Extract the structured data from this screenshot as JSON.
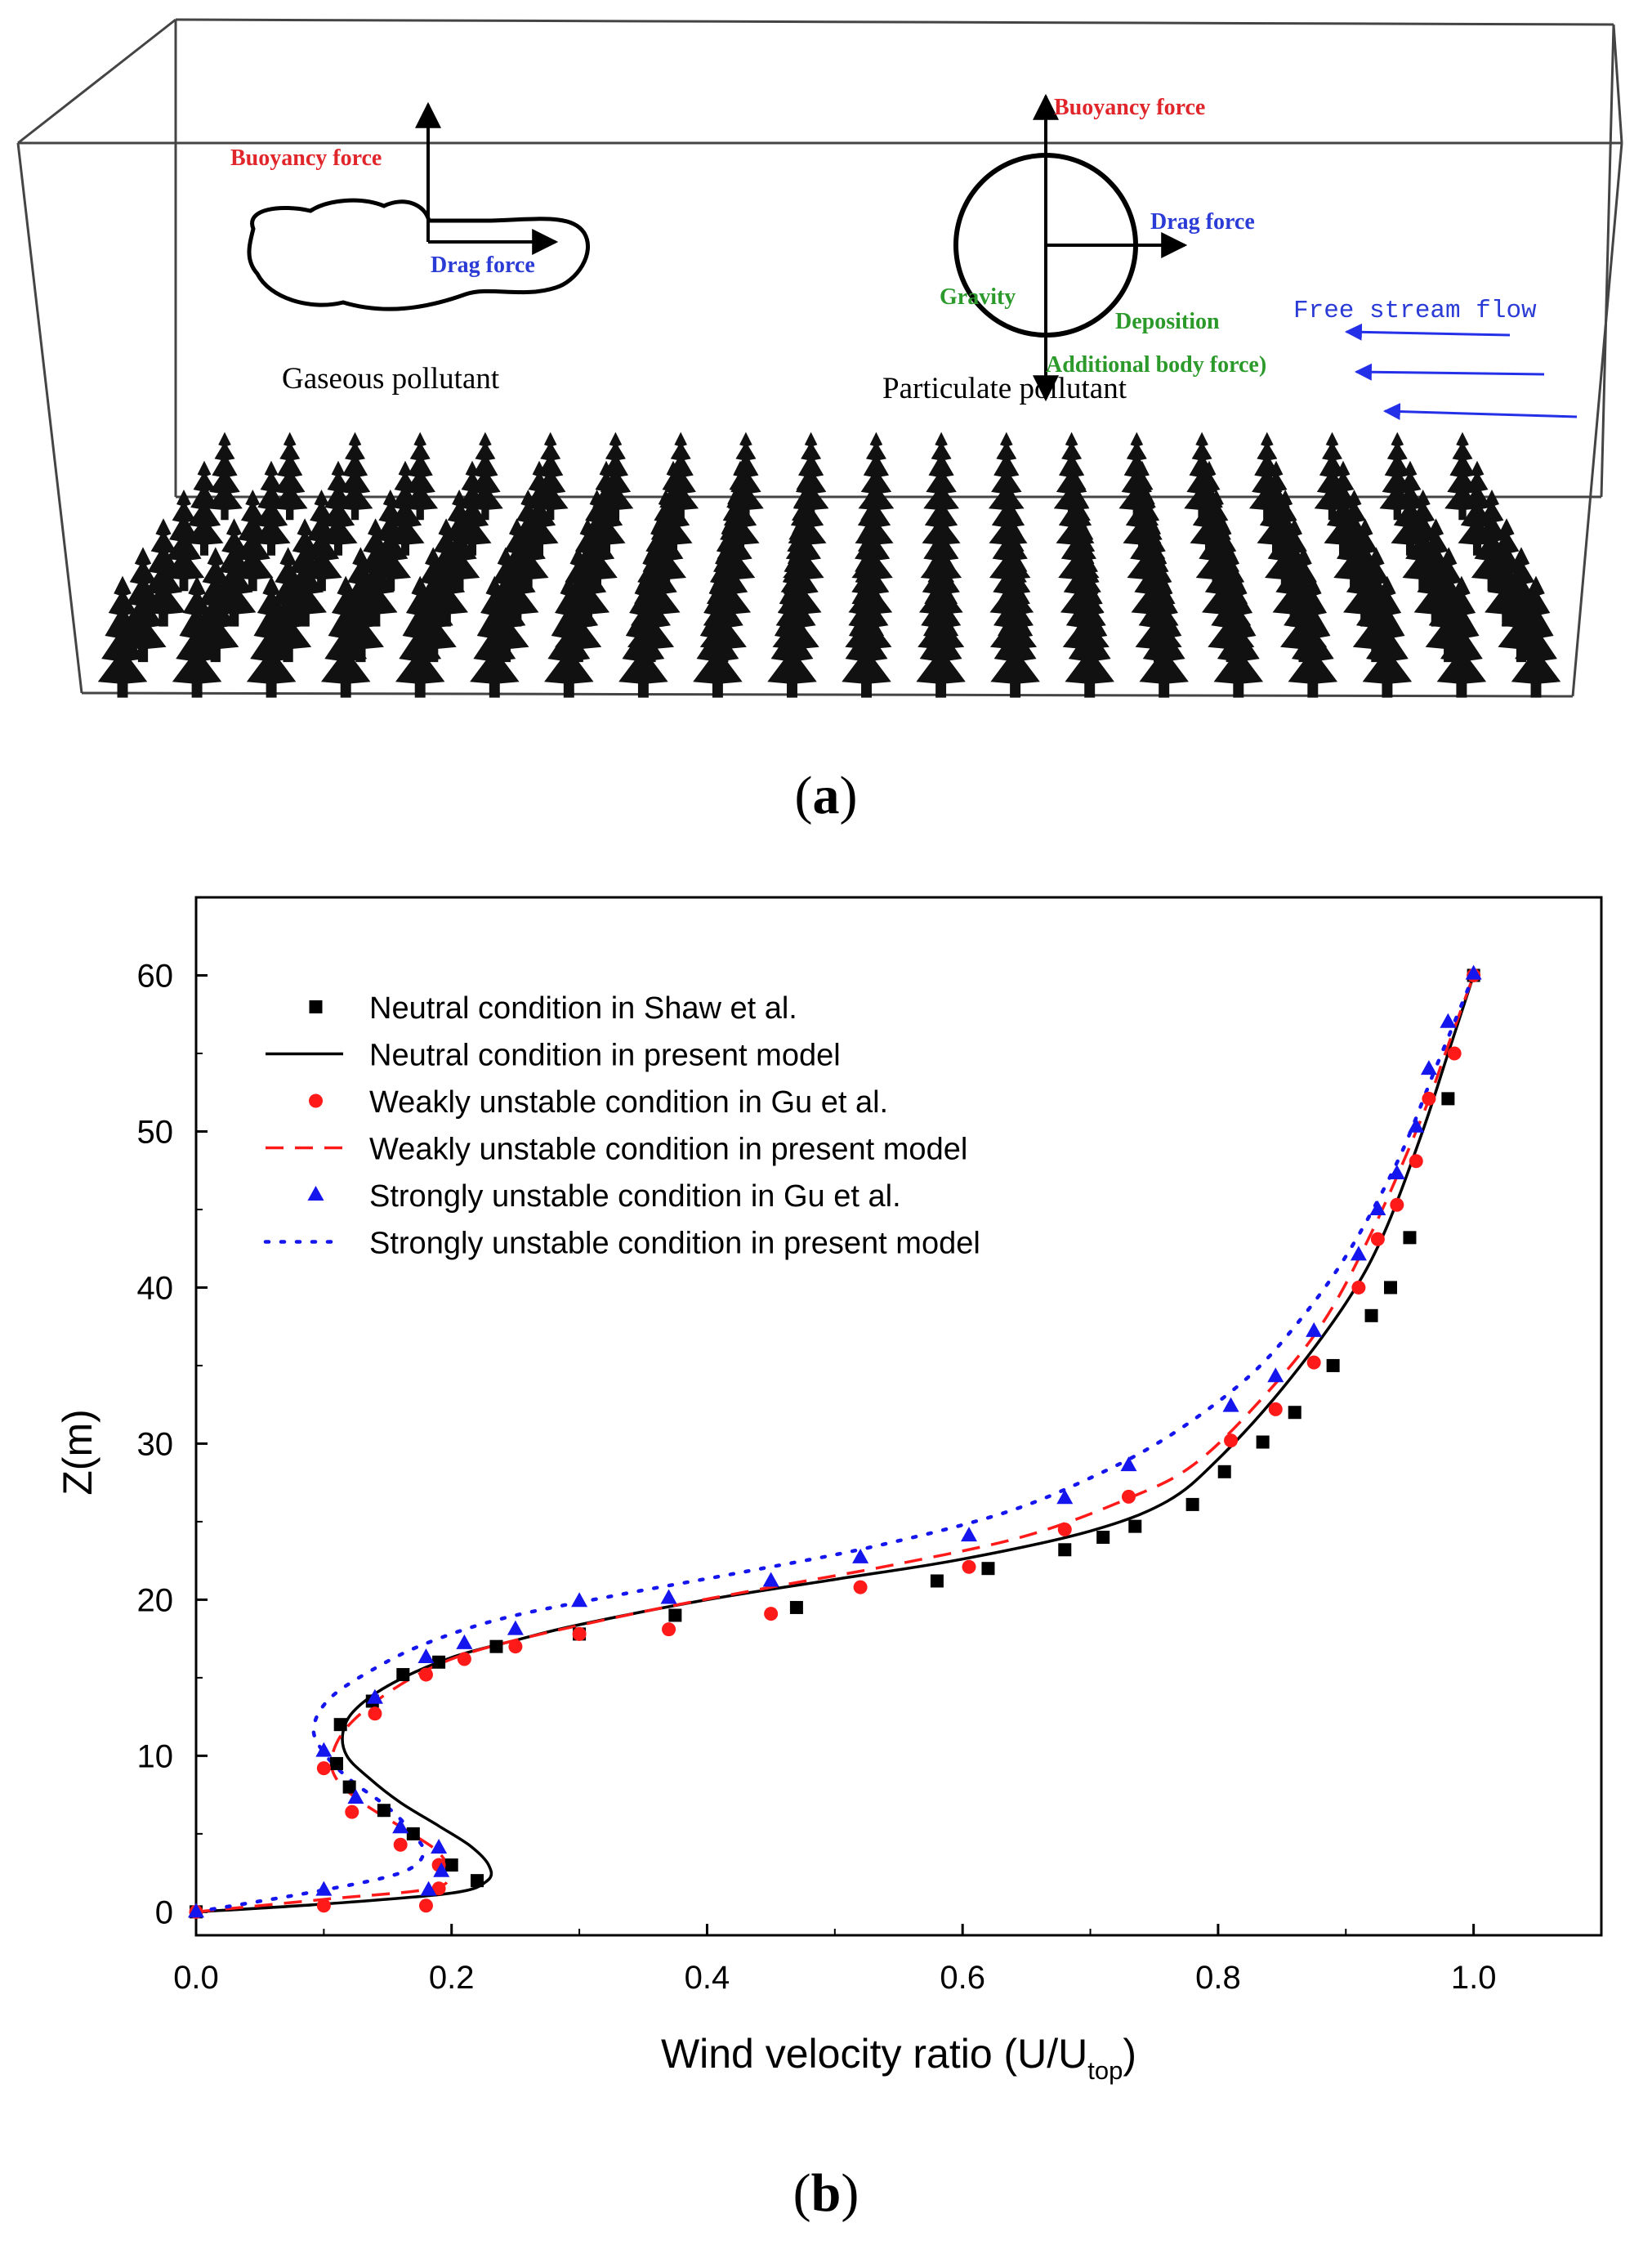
{
  "panel_a": {
    "label_letter": "a",
    "gaseous": {
      "buoyancy": "Buoyancy force",
      "drag": "Drag force",
      "title": "Gaseous pollutant"
    },
    "particulate": {
      "buoyancy": "Buoyancy force",
      "drag": "Drag force",
      "gravity": "Gravity",
      "deposition": "Deposition",
      "additional": "Additional body force)",
      "title": "Particulate pollutant"
    },
    "free_stream": "Free stream flow",
    "colors": {
      "red": "#e0262b",
      "blue": "#2b3bd6",
      "green": "#2b9a2b",
      "arrow_blue": "#2430e8"
    }
  },
  "panel_b": {
    "label_letter": "b"
  },
  "chart_data": {
    "type": "line",
    "title": "",
    "xlabel": "Wind velocity ratio (U/U",
    "xlabel_sub": "top",
    "xlabel_close": ")",
    "ylabel": "Z(m)",
    "xlim": [
      0.0,
      1.1
    ],
    "ylim": [
      -1.5,
      65
    ],
    "xticks": [
      0.0,
      0.2,
      0.4,
      0.6,
      0.8,
      1.0
    ],
    "xtick_labels": [
      "0.0",
      "0.2",
      "0.4",
      "0.6",
      "0.8",
      "1.0"
    ],
    "yticks": [
      0,
      10,
      20,
      30,
      40,
      50,
      60
    ],
    "ytick_labels": [
      "0",
      "10",
      "20",
      "30",
      "40",
      "50",
      "60"
    ],
    "series": [
      {
        "name": "Neutral condition in Shaw et al.",
        "kind": "square",
        "color": "#000000",
        "x": [
          0.0,
          0.22,
          0.2,
          0.17,
          0.147,
          0.12,
          0.11,
          0.113,
          0.138,
          0.162,
          0.19,
          0.235,
          0.3,
          0.375,
          0.47,
          0.58,
          0.62,
          0.68,
          0.71,
          0.735,
          0.78,
          0.805,
          0.835,
          0.86,
          0.89,
          0.92,
          0.935,
          0.95,
          0.98,
          1.0
        ],
        "y": [
          0.0,
          2.0,
          3.0,
          5.0,
          6.5,
          8.0,
          9.5,
          12.0,
          13.5,
          15.2,
          16.0,
          17.0,
          17.8,
          19.0,
          19.5,
          21.2,
          22.0,
          23.2,
          24.0,
          24.7,
          26.1,
          28.2,
          30.1,
          32.0,
          35.0,
          38.2,
          40.0,
          43.2,
          52.1,
          60.0
        ]
      },
      {
        "name": "Neutral condition in present model",
        "kind": "line",
        "dash": "solid",
        "color": "#000000",
        "x": [
          0.0,
          0.1,
          0.2,
          0.228,
          0.229,
          0.215,
          0.19,
          0.16,
          0.135,
          0.118,
          0.115,
          0.125,
          0.155,
          0.2,
          0.25,
          0.3,
          0.4,
          0.5,
          0.6,
          0.7,
          0.76,
          0.8,
          0.85,
          0.9,
          0.93,
          0.96,
          0.98,
          1.0
        ],
        "y": [
          0.0,
          0.5,
          1.2,
          2.0,
          3.0,
          4.2,
          5.5,
          7.0,
          8.6,
          10.0,
          11.5,
          13.0,
          14.7,
          16.3,
          17.4,
          18.4,
          20.0,
          21.3,
          22.6,
          24.4,
          26.3,
          29.0,
          33.5,
          39.0,
          43.5,
          50.0,
          55.0,
          60.0
        ]
      },
      {
        "name": "Weakly unstable condition in Gu et al.",
        "kind": "circle",
        "color": "#ff1a1a",
        "x": [
          0.0,
          0.1,
          0.18,
          0.19,
          0.19,
          0.16,
          0.122,
          0.1,
          0.14,
          0.18,
          0.21,
          0.25,
          0.3,
          0.37,
          0.45,
          0.52,
          0.605,
          0.68,
          0.73,
          0.81,
          0.845,
          0.875,
          0.91,
          0.925,
          0.94,
          0.955,
          0.965,
          0.985,
          1.0
        ],
        "y": [
          0.0,
          0.4,
          0.4,
          1.5,
          3.0,
          4.3,
          6.4,
          9.2,
          12.7,
          15.2,
          16.2,
          17.0,
          17.8,
          18.1,
          19.1,
          20.8,
          22.1,
          24.5,
          26.6,
          30.2,
          32.2,
          35.2,
          40.0,
          43.1,
          45.3,
          48.1,
          52.1,
          55.0,
          60.0
        ]
      },
      {
        "name": "Weakly unstable condition in present model",
        "kind": "line",
        "dash": "dashed",
        "color": "#ff1a1a",
        "x": [
          0.0,
          0.1,
          0.185,
          0.197,
          0.19,
          0.165,
          0.13,
          0.11,
          0.1065,
          0.12,
          0.155,
          0.2,
          0.26,
          0.36,
          0.45,
          0.55,
          0.65,
          0.73,
          0.78,
          0.83,
          0.88,
          0.92,
          0.96,
          0.98,
          1.0
        ],
        "y": [
          0.0,
          0.8,
          1.5,
          2.5,
          3.8,
          5.2,
          7.0,
          8.5,
          10.0,
          12.0,
          14.3,
          16.2,
          17.6,
          19.4,
          20.8,
          22.3,
          24.1,
          26.5,
          28.6,
          32.5,
          37.5,
          43.5,
          51.0,
          55.5,
          60.0
        ]
      },
      {
        "name": "Strongly unstable condition in Gu et al.",
        "kind": "triangle",
        "color": "#1515ee",
        "x": [
          0.0,
          0.1,
          0.182,
          0.192,
          0.19,
          0.16,
          0.125,
          0.1,
          0.14,
          0.18,
          0.21,
          0.25,
          0.3,
          0.37,
          0.45,
          0.52,
          0.605,
          0.68,
          0.73,
          0.81,
          0.845,
          0.875,
          0.91,
          0.925,
          0.94,
          0.955,
          0.965,
          0.98,
          1.0
        ],
        "y": [
          0.0,
          1.4,
          1.4,
          2.6,
          4.1,
          5.4,
          7.3,
          10.3,
          13.7,
          16.3,
          17.2,
          18.1,
          19.9,
          20.1,
          21.2,
          22.7,
          24.1,
          26.5,
          28.6,
          32.4,
          34.3,
          37.2,
          42.1,
          45.0,
          47.3,
          50.3,
          54.0,
          57.0,
          60.1
        ]
      },
      {
        "name": "Strongly unstable condition in present model",
        "kind": "line",
        "dash": "dotted",
        "color": "#1515ee",
        "x": [
          0.0,
          0.1,
          0.16,
          0.178,
          0.17,
          0.15,
          0.12,
          0.1,
          0.092,
          0.105,
          0.14,
          0.18,
          0.24,
          0.33,
          0.43,
          0.53,
          0.63,
          0.7,
          0.76,
          0.82,
          0.86,
          0.9,
          0.94,
          0.97,
          1.0
        ],
        "y": [
          0.0,
          1.4,
          2.5,
          3.7,
          5.0,
          6.7,
          8.5,
          10.2,
          11.8,
          13.7,
          15.6,
          17.2,
          18.8,
          20.3,
          21.8,
          23.4,
          25.5,
          27.8,
          30.4,
          34.0,
          37.5,
          42.0,
          48.0,
          54.0,
          60.0
        ]
      }
    ],
    "legend_position": "top-left"
  }
}
